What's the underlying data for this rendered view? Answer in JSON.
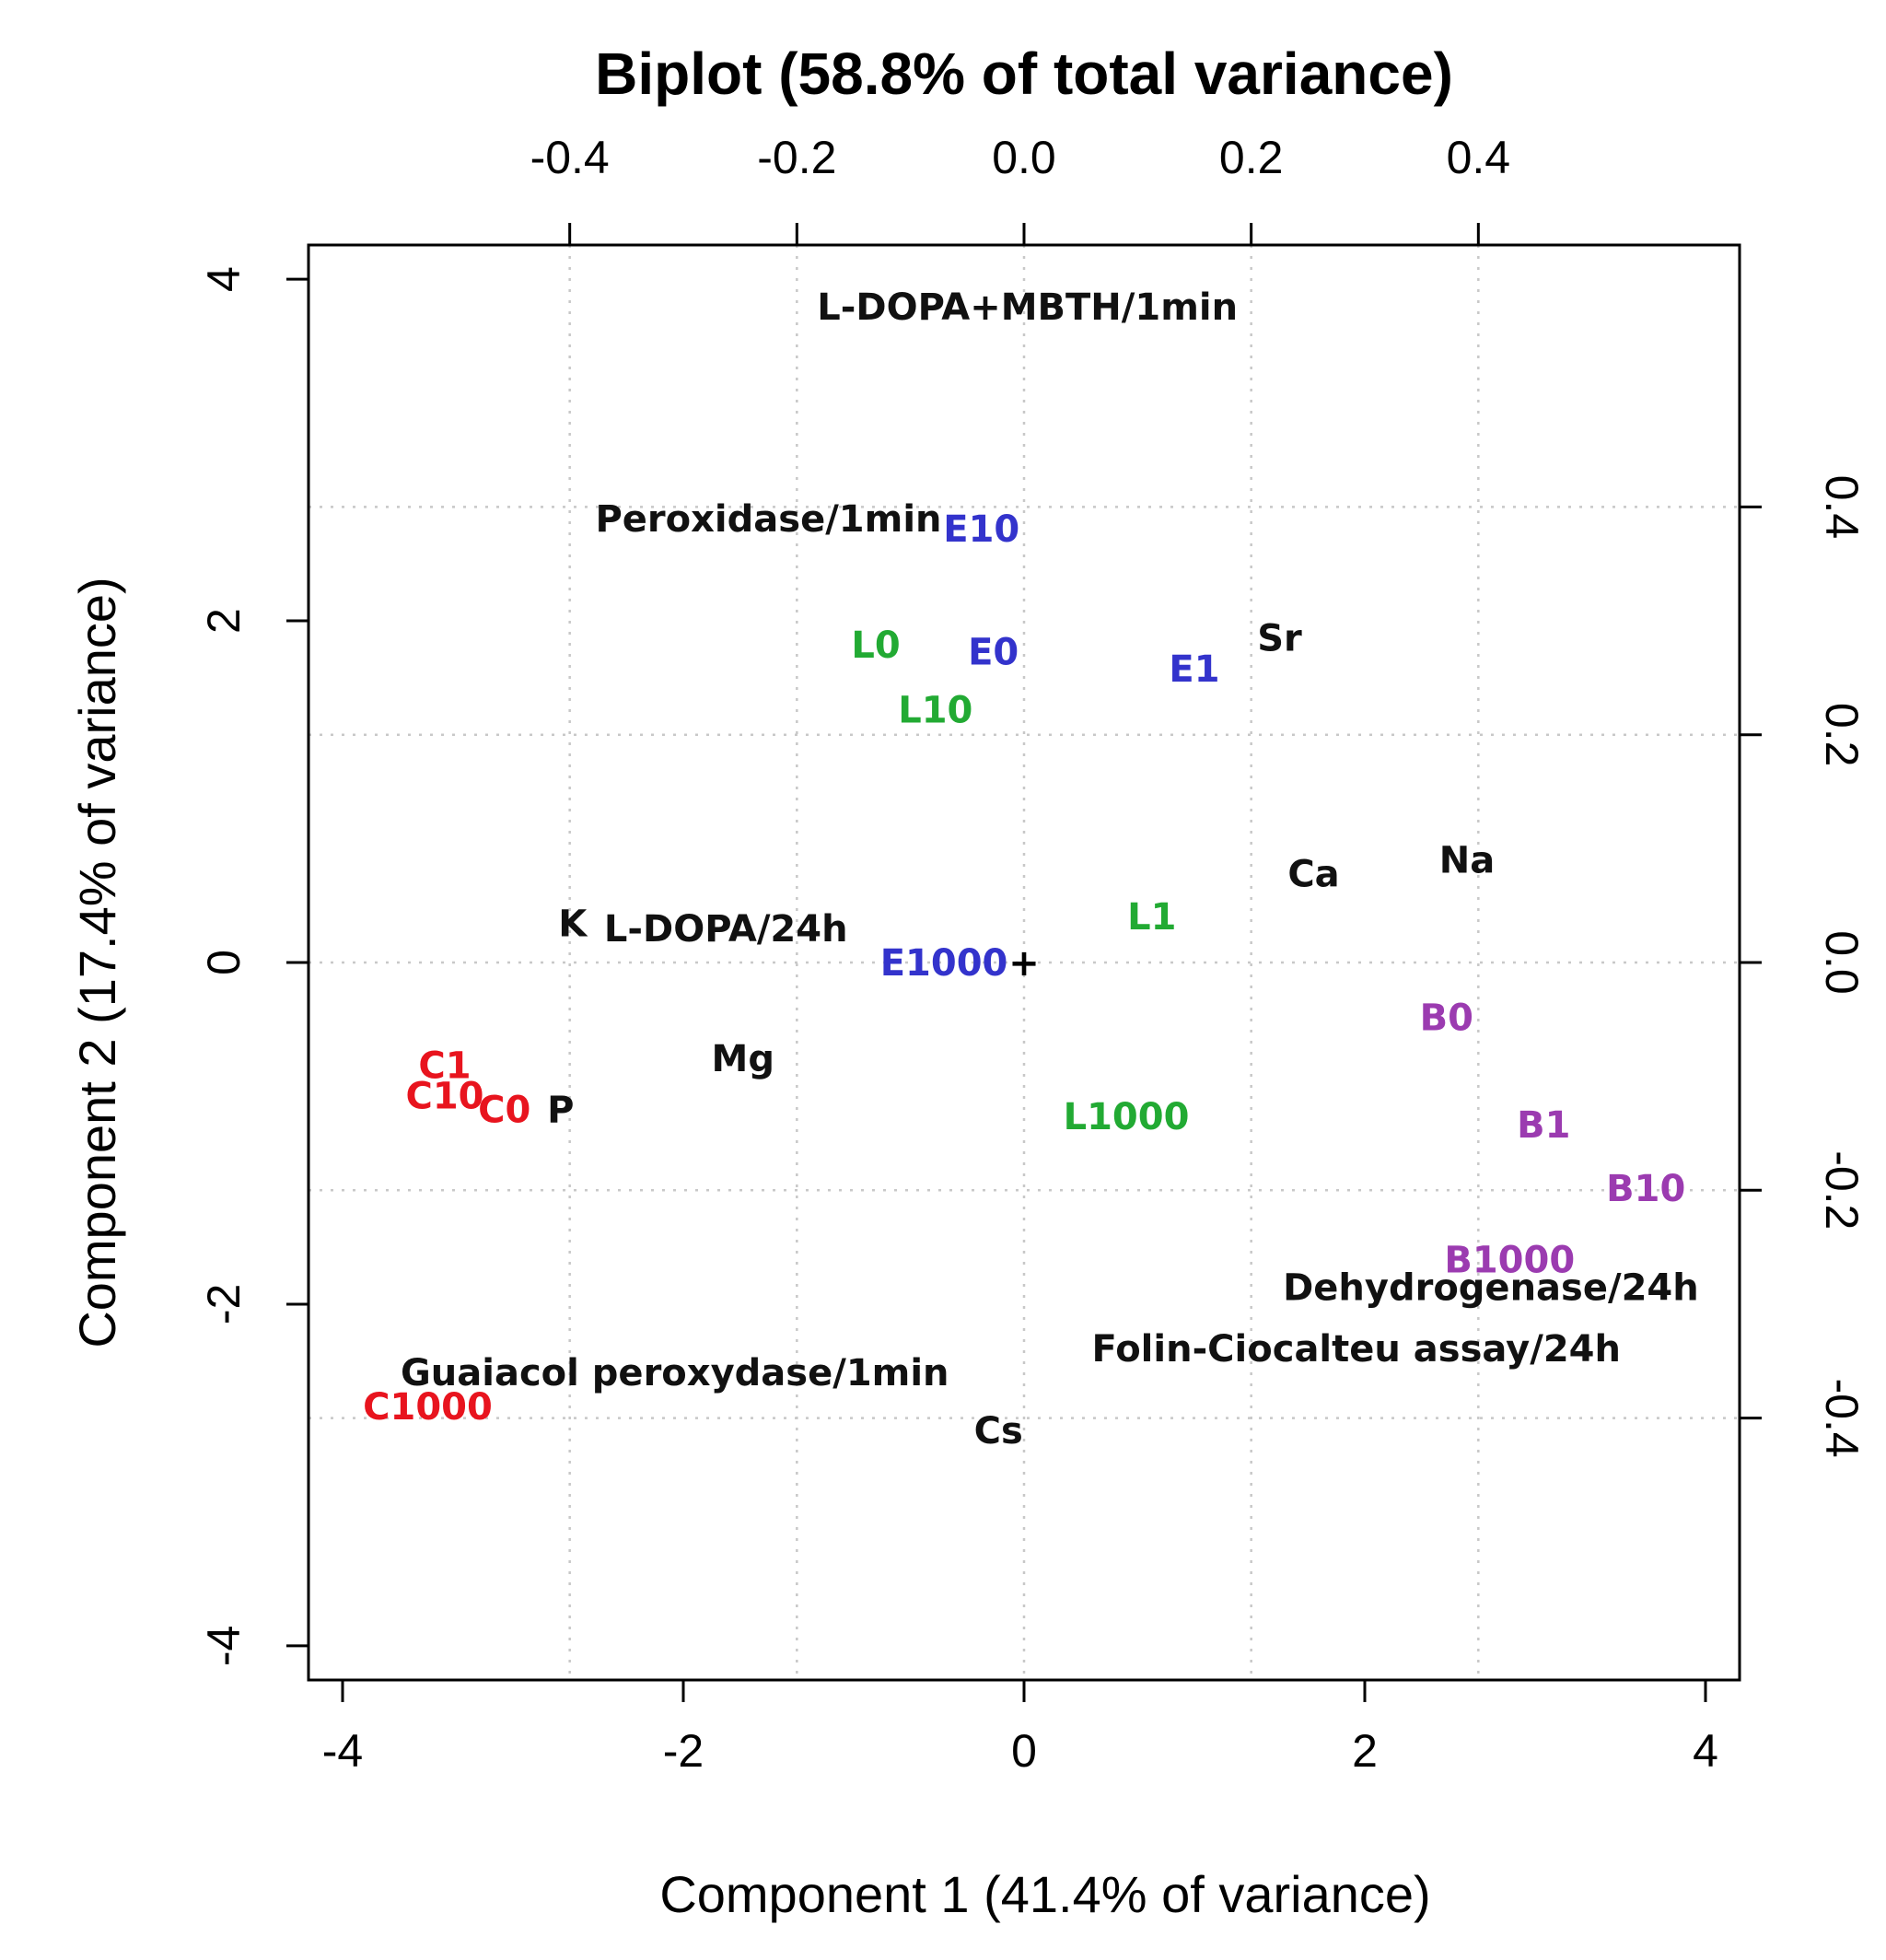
{
  "chart_data": {
    "type": "scatter",
    "title": "Biplot (58.8% of total variance)",
    "xlabel": "Component 1 (41.4% of variance)",
    "ylabel": "Component 2 (17.4% of variance)",
    "xlim": [
      -4.2,
      4.2
    ],
    "ylim": [
      -4.2,
      4.2
    ],
    "xticks": [
      -4,
      -2,
      0,
      2,
      4
    ],
    "yticks": [
      -4,
      -2,
      0,
      2,
      4
    ],
    "top_axis": {
      "lim": [
        -0.63,
        0.63
      ],
      "ticks": [
        -0.4,
        -0.2,
        0.0,
        0.2,
        0.4
      ]
    },
    "right_axis": {
      "lim": [
        -0.63,
        0.63
      ],
      "ticks": [
        -0.4,
        -0.2,
        0.0,
        0.2,
        0.4
      ]
    },
    "grid": true,
    "origin_marker": "+",
    "colors": {
      "C": "#e8141e",
      "E": "#3333cc",
      "L": "#22aa33",
      "B": "#9b3bb0",
      "var": "#111111"
    },
    "samples": [
      {
        "label": "C1",
        "group": "C",
        "x": -3.4,
        "y": -0.6
      },
      {
        "label": "C10",
        "group": "C",
        "x": -3.4,
        "y": -0.78
      },
      {
        "label": "C0",
        "group": "C",
        "x": -3.05,
        "y": -0.86
      },
      {
        "label": "C1000",
        "group": "C",
        "x": -3.5,
        "y": -2.6
      },
      {
        "label": "E10",
        "group": "E",
        "x": -0.25,
        "y": 2.54
      },
      {
        "label": "E0",
        "group": "E",
        "x": -0.18,
        "y": 1.82
      },
      {
        "label": "E1",
        "group": "E",
        "x": 1.0,
        "y": 1.72
      },
      {
        "label": "E1000",
        "group": "E",
        "x": -0.47,
        "y": 0.0
      },
      {
        "label": "L0",
        "group": "L",
        "x": -0.87,
        "y": 1.86
      },
      {
        "label": "L10",
        "group": "L",
        "x": -0.52,
        "y": 1.48
      },
      {
        "label": "L1",
        "group": "L",
        "x": 0.75,
        "y": 0.27
      },
      {
        "label": "L1000",
        "group": "L",
        "x": 0.6,
        "y": -0.9
      },
      {
        "label": "B0",
        "group": "B",
        "x": 2.48,
        "y": -0.32
      },
      {
        "label": "B1",
        "group": "B",
        "x": 3.05,
        "y": -0.95
      },
      {
        "label": "B10",
        "group": "B",
        "x": 3.65,
        "y": -1.32
      },
      {
        "label": "B1000",
        "group": "B",
        "x": 2.85,
        "y": -1.74
      }
    ],
    "variables": [
      {
        "label": "L-DOPA+MBTH/1min",
        "x": 0.02,
        "y": 3.84
      },
      {
        "label": "Peroxidase/1min",
        "x": -1.5,
        "y": 2.6
      },
      {
        "label": "Sr",
        "x": 1.5,
        "y": 1.9
      },
      {
        "label": "Ca",
        "x": 1.7,
        "y": 0.52
      },
      {
        "label": "Na",
        "x": 2.6,
        "y": 0.6
      },
      {
        "label": "K",
        "x": -2.65,
        "y": 0.23
      },
      {
        "label": "L-DOPA/24h",
        "x": -1.75,
        "y": 0.2
      },
      {
        "label": "Mg",
        "x": -1.65,
        "y": -0.56
      },
      {
        "label": "P",
        "x": -2.72,
        "y": -0.86
      },
      {
        "label": "Dehydrogenase/24h",
        "x": 2.74,
        "y": -1.9
      },
      {
        "label": "Folin-Ciocalteu assay/24h",
        "x": 1.95,
        "y": -2.26
      },
      {
        "label": "Guaiacol peroxydase/1min",
        "x": -2.05,
        "y": -2.4
      },
      {
        "label": "Cs",
        "x": -0.15,
        "y": -2.74
      }
    ]
  }
}
